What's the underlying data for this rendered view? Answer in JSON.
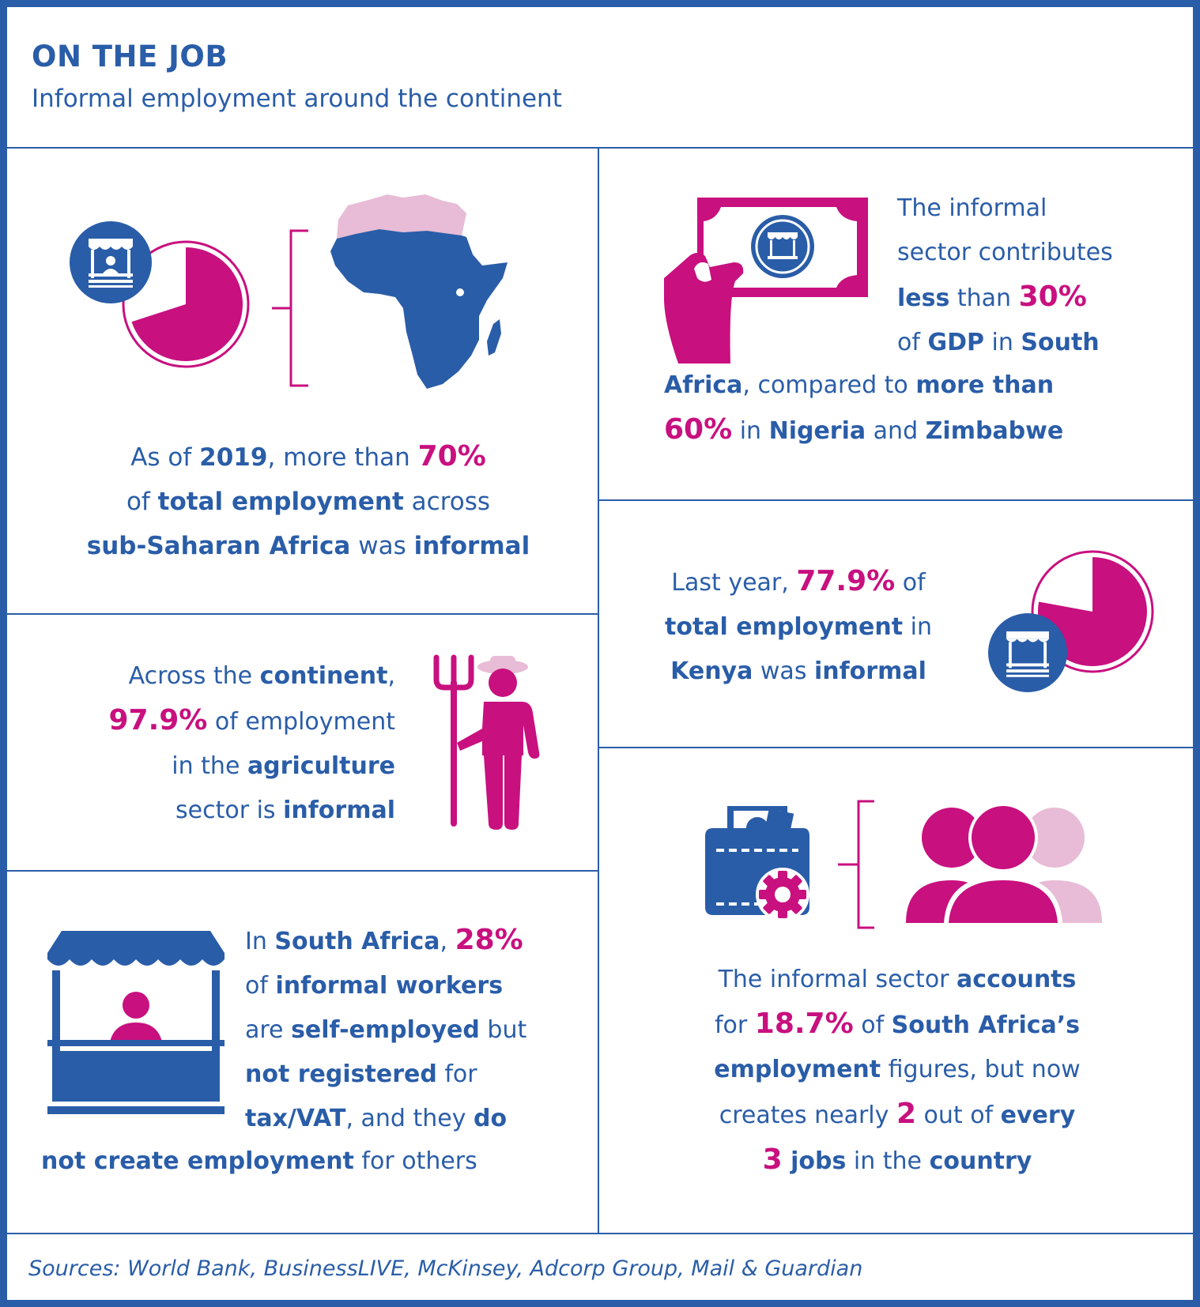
{
  "header": {
    "title": "ON THE JOB",
    "subtitle": "Informal employment around the continent"
  },
  "panels": {
    "ssa": {
      "l1": [
        "As of ",
        "2019",
        ", more than ",
        "70%"
      ],
      "l2": [
        "of ",
        "total employment",
        " across"
      ],
      "l3": [
        "sub-Saharan Africa",
        " was ",
        "informal"
      ]
    },
    "gdp": {
      "l1": "The informal",
      "l2": "sector contributes",
      "l3": [
        "less",
        " than ",
        "30%"
      ],
      "l4": [
        "of ",
        "GDP",
        " in ",
        "South"
      ],
      "l5": [
        "Africa",
        ", compared to ",
        "more than"
      ],
      "l6": [
        "60%",
        " in ",
        "Nigeria",
        " and ",
        "Zimbabwe"
      ]
    },
    "kenya": {
      "l1": [
        "Last year, ",
        "77.9%",
        " of"
      ],
      "l2": [
        "total employment",
        " in"
      ],
      "l3": [
        "Kenya",
        " was ",
        "informal"
      ]
    },
    "agri": {
      "l1": [
        "Across the ",
        "continent",
        ","
      ],
      "l2": [
        "97.9%",
        " of employment"
      ],
      "l3": [
        "in the ",
        "agriculture"
      ],
      "l4": [
        "sector is ",
        "informal"
      ]
    },
    "self": {
      "l1": [
        "In ",
        "South Africa",
        ", ",
        "28%"
      ],
      "l2": [
        "of ",
        "informal workers"
      ],
      "l3": [
        "are ",
        "self-employed",
        " but"
      ],
      "l4": [
        "not registered",
        " for"
      ],
      "l5": [
        "tax/VAT",
        ", and they ",
        "do"
      ],
      "l6": [
        "not create employment",
        " for others"
      ]
    },
    "jobs": {
      "l1": [
        "The informal sector ",
        "accounts"
      ],
      "l2": [
        "for ",
        "18.7%",
        " of ",
        "South Africa’s"
      ],
      "l3": [
        "employment",
        " figures, but now"
      ],
      "l4": [
        "creates nearly ",
        "2",
        " out of ",
        "every"
      ],
      "l5": [
        "3",
        " jobs",
        " in the ",
        "country"
      ]
    }
  },
  "sources": "Sources: World Bank, BusinessLIVE, McKinsey, Adcorp Group, Mail & Guardian",
  "colors": {
    "blue": "#2a5da8",
    "magenta": "#c8107f",
    "light_pink": "#e8bcd6"
  },
  "icons": [
    "market-stall-icon",
    "pie-chart-icon",
    "africa-map-icon",
    "banknote-hand-icon",
    "farmer-icon",
    "wallet-gear-icon",
    "people-group-icon"
  ],
  "pie_values": {
    "ssa_informal_pct": 70,
    "kenya_informal_pct": 77.9
  }
}
